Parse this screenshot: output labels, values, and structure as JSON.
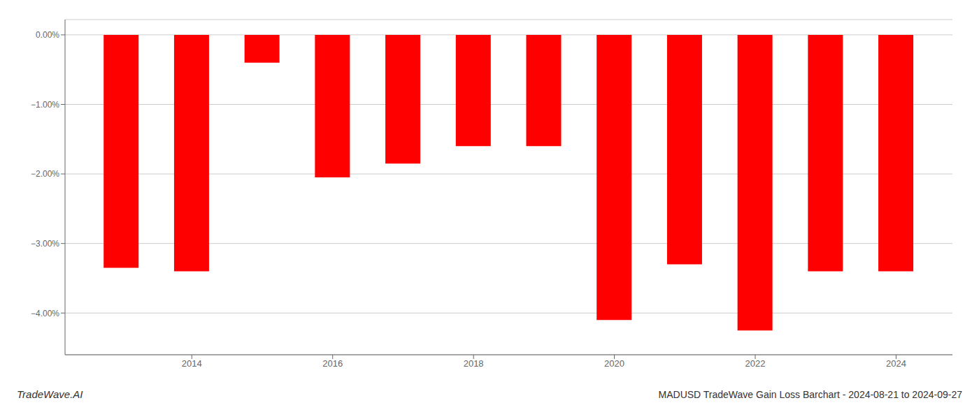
{
  "chart_data": {
    "type": "bar",
    "title": "MADUSD TradeWave Gain Loss Barchart - 2024-08-21 to 2024-09-27",
    "annotations": [
      "TradeWave.AI"
    ],
    "x": [
      2013,
      2014,
      2015,
      2016,
      2017,
      2018,
      2019,
      2020,
      2021,
      2022,
      2023,
      2024
    ],
    "values": [
      -3.35,
      -3.4,
      -0.4,
      -2.05,
      -1.85,
      -1.6,
      -1.6,
      -4.1,
      -3.3,
      -4.25,
      -3.4,
      -3.4
    ],
    "color": "#ff0000",
    "xlim": [
      2012.2,
      2024.8
    ],
    "xticks": [
      2014,
      2016,
      2018,
      2020,
      2022,
      2024
    ],
    "ylim": [
      -4.6,
      0.22
    ],
    "yticks": [
      {
        "value": 0.0,
        "label": "0.00%"
      },
      {
        "value": -1.0,
        "label": "−1.00%"
      },
      {
        "value": -2.0,
        "label": "−2.00%"
      },
      {
        "value": -3.0,
        "label": "−3.00%"
      },
      {
        "value": -4.0,
        "label": "−4.00%"
      }
    ],
    "grid": true
  }
}
